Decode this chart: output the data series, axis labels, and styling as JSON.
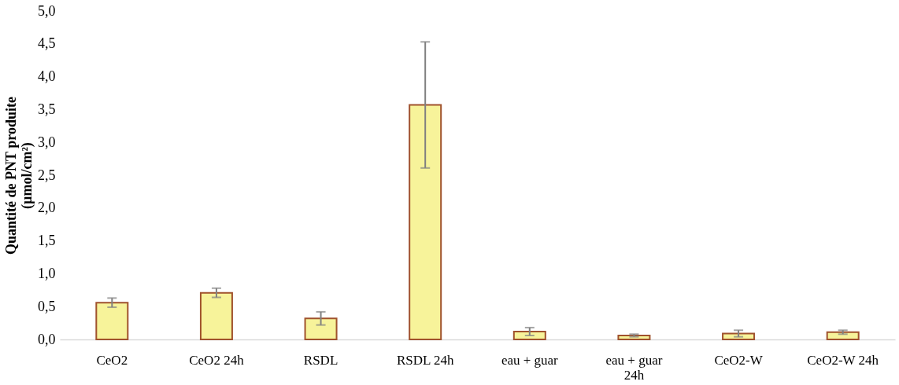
{
  "chart_data": {
    "type": "bar",
    "ylabel": [
      "Quantité de PNT produite",
      "(µmol/cm²)"
    ],
    "categories": [
      "CeO2",
      "CeO2 24h",
      "RSDL",
      "RSDL 24h",
      "eau + guar",
      "eau + guar 24h",
      "CeO2-W",
      "CeO2-W 24h"
    ],
    "series": [
      {
        "color": "#f7f39a",
        "values": [
          0.56,
          0.71,
          0.32,
          3.57,
          0.12,
          0.06,
          0.09,
          0.11
        ],
        "errors": [
          0.07,
          0.07,
          0.1,
          0.96,
          0.06,
          0.02,
          0.05,
          0.03
        ]
      }
    ],
    "ylim": [
      0,
      5
    ],
    "yticks": [
      {
        "value": 0,
        "label": "0,0"
      },
      {
        "value": 0.5,
        "label": "0,5"
      },
      {
        "value": 1,
        "label": "1,0"
      },
      {
        "value": 1.5,
        "label": "1,5"
      },
      {
        "value": 2,
        "label": "2,0"
      },
      {
        "value": 2.5,
        "label": "2,5"
      },
      {
        "value": 3,
        "label": "3,0"
      },
      {
        "value": 3.5,
        "label": "3,5"
      },
      {
        "value": 4,
        "label": "4,0"
      },
      {
        "value": 4.5,
        "label": "4,5"
      },
      {
        "value": 5,
        "label": "5,0"
      }
    ],
    "grid": false
  }
}
